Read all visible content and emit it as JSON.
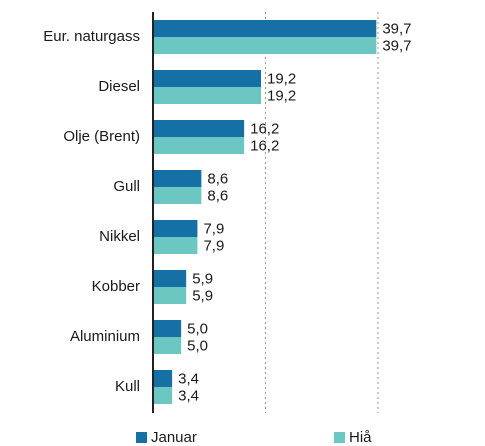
{
  "chart_data": {
    "type": "barh",
    "categories": [
      "Eur. naturgass",
      "Diesel",
      "Olje (Brent)",
      "Gull",
      "Nikkel",
      "Kobber",
      "Aluminium",
      "Kull"
    ],
    "series": [
      {
        "name": "Januar",
        "color": "#1570a6",
        "values": [
          39.7,
          19.2,
          16.2,
          8.6,
          7.9,
          5.9,
          5.0,
          3.4
        ],
        "value_labels": [
          "39,7",
          "19,2",
          "16,2",
          "8,6",
          "7,9",
          "5,9",
          "5,0",
          "3,4"
        ]
      },
      {
        "name": "Hiå",
        "color": "#6cc6c1",
        "values": [
          39.7,
          19.2,
          16.2,
          8.6,
          7.9,
          5.9,
          5.0,
          3.4
        ],
        "value_labels": [
          "39,7",
          "19,2",
          "16,2",
          "8,6",
          "7,9",
          "5,9",
          "5,0",
          "3,4"
        ]
      }
    ],
    "xlim": [
      0,
      40
    ],
    "xticks": [
      0,
      20,
      40
    ],
    "grid": true
  }
}
